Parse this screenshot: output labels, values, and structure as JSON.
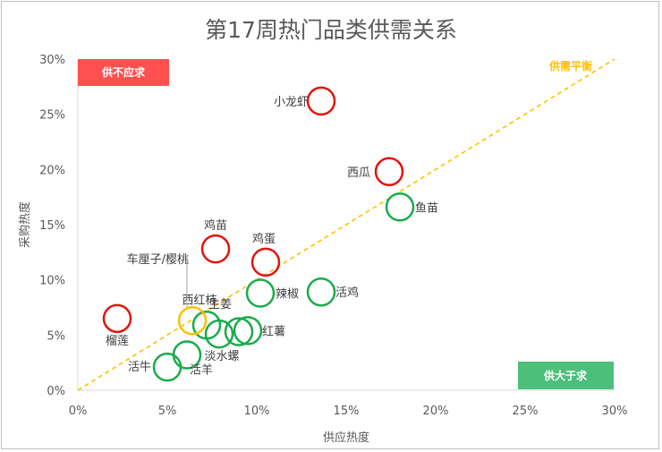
{
  "chart_data": {
    "type": "scatter",
    "title": "第17周热门品类供需关系",
    "xlabel": "供应热度",
    "ylabel": "采购热度",
    "xlim": [
      0,
      0.3
    ],
    "ylim": [
      0,
      0.3
    ],
    "x_ticks": [
      "0%",
      "5%",
      "10%",
      "15%",
      "20%",
      "25%",
      "30%"
    ],
    "y_ticks": [
      "0%",
      "5%",
      "10%",
      "15%",
      "20%",
      "25%",
      "30%"
    ],
    "grid": false,
    "reference_line": {
      "label": "供需平衡",
      "from": [
        0,
        0
      ],
      "to": [
        0.3,
        0.3
      ],
      "color": "#ffc000"
    },
    "quadrant_tags": {
      "top_left": {
        "text": "供不应求",
        "color": "#ff5050"
      },
      "bottom_right": {
        "text": "供大于求",
        "color": "#4cc07a"
      }
    },
    "colors": {
      "demand_exceeds": "#e3140e",
      "supply_exceeds": "#1aab4b",
      "balanced": "#ffc000"
    },
    "points": [
      {
        "name": "小龙虾",
        "x": 0.136,
        "y": 0.262,
        "group": "demand_exceeds"
      },
      {
        "name": "西瓜",
        "x": 0.174,
        "y": 0.198,
        "group": "demand_exceeds"
      },
      {
        "name": "鸡苗",
        "x": 0.077,
        "y": 0.128,
        "group": "demand_exceeds"
      },
      {
        "name": "鸡蛋",
        "x": 0.105,
        "y": 0.116,
        "group": "demand_exceeds"
      },
      {
        "name": "榴莲",
        "x": 0.022,
        "y": 0.065,
        "group": "demand_exceeds"
      },
      {
        "name": "鱼苗",
        "x": 0.18,
        "y": 0.166,
        "group": "supply_exceeds"
      },
      {
        "name": "辣椒",
        "x": 0.102,
        "y": 0.088,
        "group": "supply_exceeds"
      },
      {
        "name": "活鸡",
        "x": 0.136,
        "y": 0.089,
        "group": "supply_exceeds"
      },
      {
        "name": "生姜",
        "x": 0.072,
        "y": 0.059,
        "group": "supply_exceeds"
      },
      {
        "name": "红薯",
        "x": 0.095,
        "y": 0.054,
        "group": "supply_exceeds"
      },
      {
        "name": "淡水螺",
        "x": 0.079,
        "y": 0.051,
        "group": "supply_exceeds"
      },
      {
        "name": "",
        "x": 0.09,
        "y": 0.053,
        "group": "supply_exceeds"
      },
      {
        "name": "活羊",
        "x": 0.061,
        "y": 0.032,
        "group": "supply_exceeds"
      },
      {
        "name": "活牛",
        "x": 0.05,
        "y": 0.021,
        "group": "supply_exceeds"
      },
      {
        "name": "西红柿",
        "x": 0.064,
        "y": 0.063,
        "group": "balanced"
      }
    ],
    "callout": {
      "text": "车厘子/樱桃",
      "target": "西红柿"
    }
  }
}
